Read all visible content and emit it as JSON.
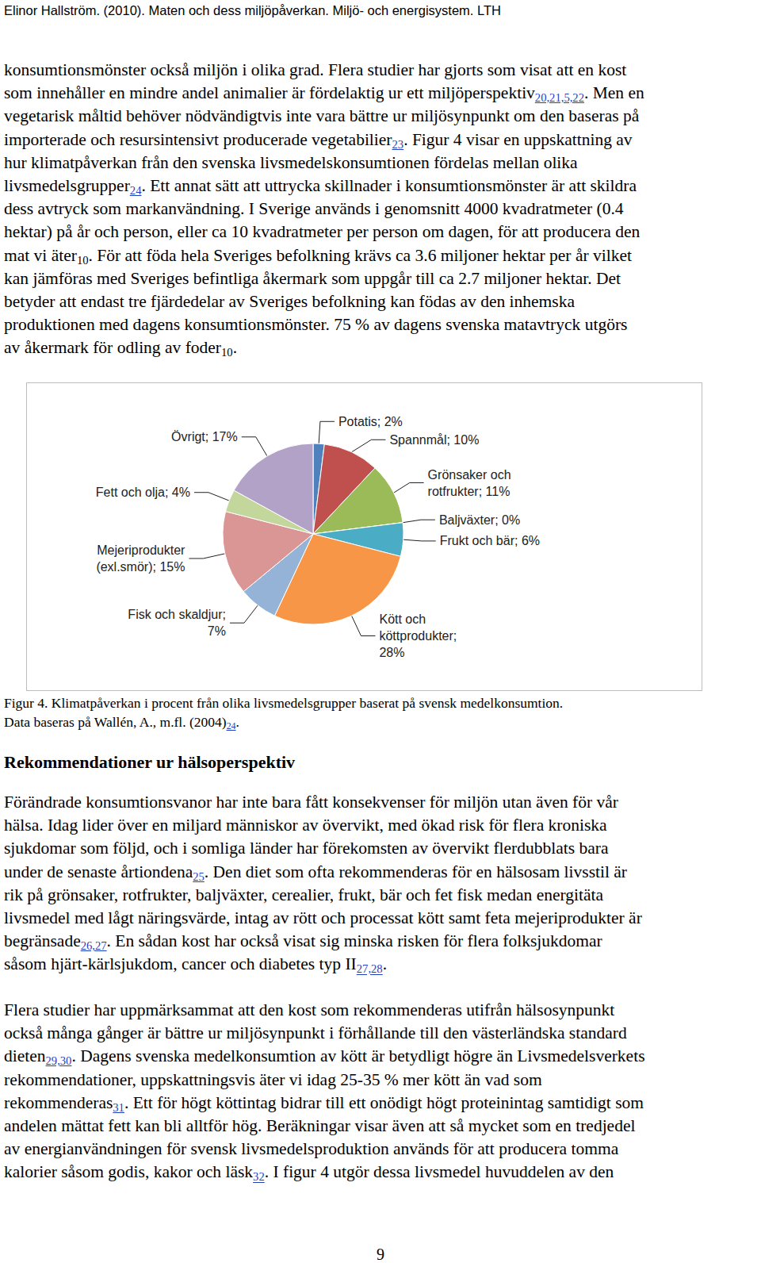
{
  "header": "Elinor Hallström. (2010). Maten och dess miljöpåverkan. Miljö- och energisystem. LTH",
  "intro_paragraph": [
    [
      "konsumtionsmönster också miljön i olika grad. Flera studier har gjorts som visat att en kost"
    ],
    [
      "som innehåller en mindre andel animalier är fördelaktig ur ett miljöperspektiv",
      {
        "sub": "20,21,5,22",
        "link": true
      },
      ". Men en"
    ],
    [
      "vegetarisk måltid behöver nödvändigtvis inte vara bättre ur miljösynpunkt om den baseras på"
    ],
    [
      "importerade och resursintensivt producerade vegetabilier",
      {
        "sub": "23",
        "link": true
      },
      ". Figur 4 visar en uppskattning av"
    ],
    [
      "hur klimatpåverkan från den svenska livsmedelskonsumtionen fördelas mellan olika"
    ],
    [
      "livsmedelsgrupper",
      {
        "sub": "24",
        "link": true
      },
      ". Ett annat sätt att uttrycka skillnader i konsumtionsmönster är att skildra"
    ],
    [
      "dess avtryck som markanvändning. I Sverige används i genomsnitt 4000 kvadratmeter (0.4"
    ],
    [
      "hektar) på år och person, eller ca 10 kvadratmeter per person om dagen, för att producera den"
    ],
    [
      "mat vi äter",
      {
        "sub": "10",
        "link": false
      },
      ". För att föda hela Sveriges befolkning krävs ca 3.6 miljoner hektar per år vilket"
    ],
    [
      "kan jämföras med Sveriges befintliga åkermark som uppgår till ca 2.7 miljoner hektar. Det"
    ],
    [
      "betyder att endast tre fjärdedelar av Sveriges befolkning kan födas av den inhemska"
    ],
    [
      "produktionen med dagens konsumtionsmönster. 75 % av dagens svenska matavtryck utgörs"
    ],
    [
      "av åkermark för odling av foder",
      {
        "sub": "10",
        "link": false
      },
      "."
    ]
  ],
  "chart_data": {
    "type": "pie",
    "categories": [
      "Potatis",
      "Spannmål",
      "Grönsaker och rotfrukter",
      "Baljväxter",
      "Frukt och bär",
      "Kött och köttprodukter",
      "Fisk och skaldjur",
      "Mejeriprodukter (exl.smör)",
      "Fett och olja",
      "Övrigt"
    ],
    "values": [
      2,
      10,
      11,
      0,
      6,
      28,
      7,
      15,
      4,
      17
    ],
    "value_labels": [
      "Potatis; 2%",
      "Spannmål; 10%",
      "Grönsaker och\nrotfrukter; 11%",
      "Baljväxter; 0%",
      "Frukt och bär; 6%",
      "Kött och\nköttprodukter;\n28%",
      "Fisk och skaldjur;\n7%",
      "Mejeriprodukter\n(exl.smör); 15%",
      "Fett och olja; 4%",
      "Övrigt; 17%"
    ],
    "colors": [
      "#4f81bd",
      "#c0504d",
      "#9bbb59",
      "#8064a2",
      "#4bacc6",
      "#f79646",
      "#95b3d7",
      "#d99694",
      "#c3d69b",
      "#b3a2c7"
    ],
    "data_labels": true
  },
  "caption": [
    [
      "Figur 4. Klimatpåverkan i procent från olika livsmedelsgrupper baserat på svensk medelkonsumtion."
    ],
    [
      "Data baseras på Wallén, A., m.fl. (2004)",
      {
        "sub": "24",
        "link": true
      },
      "."
    ]
  ],
  "heading": "Rekommendationer ur hälsoperspektiv",
  "paragraphs": [
    [
      [
        "Förändrade konsumtionsvanor har inte bara fått konsekvenser för miljön utan även för vår"
      ],
      [
        "hälsa. Idag lider över en miljard människor av övervikt, med ökad risk för flera kroniska"
      ],
      [
        "sjukdomar som följd, och i somliga länder har förekomsten av övervikt flerdubblats bara"
      ],
      [
        "under de senaste årtiondena",
        {
          "sub": "25",
          "link": true
        },
        ". Den diet som ofta rekommenderas för en hälsosam livsstil är"
      ],
      [
        "rik på grönsaker, rotfrukter, baljväxter, cerealier, frukt, bär och fet fisk medan energitäta"
      ],
      [
        "livsmedel med lågt näringsvärde, intag av rött och processat kött samt feta mejeriprodukter är"
      ],
      [
        "begränsade",
        {
          "sub": "26,27",
          "link": true
        },
        ". En sådan kost har också visat sig minska risken för flera folksjukdomar"
      ],
      [
        "såsom hjärt-kärlsjukdom, cancer och diabetes typ II",
        {
          "sub": "27,28",
          "link": true
        },
        "."
      ]
    ],
    [
      [
        "Flera studier har uppmärksammat att den kost som rekommenderas utifrån hälsosynpunkt"
      ],
      [
        "också många gånger är bättre ur miljösynpunkt i förhållande till den västerländska standard"
      ],
      [
        "dieten",
        {
          "sub": "29,30",
          "link": true
        },
        ". Dagens svenska medelkonsumtion av kött är betydligt högre än Livsmedelsverkets"
      ],
      [
        "rekommendationer, uppskattningsvis äter vi idag 25-35 % mer kött än vad som"
      ],
      [
        "rekommenderas",
        {
          "sub": "31",
          "link": true
        },
        ". Ett för högt köttintag bidrar till ett onödigt högt proteinintag samtidigt som"
      ],
      [
        "andelen mättat fett kan bli alltför hög. Beräkningar visar även att så mycket som en tredjedel"
      ],
      [
        "av energianvändningen för svensk livsmedelsproduktion används för att producera tomma"
      ],
      [
        "kalorier såsom godis, kakor och läsk",
        {
          "sub": "32",
          "link": true
        },
        ". I figur 4 utgör dessa livsmedel huvuddelen av den"
      ]
    ]
  ],
  "page_number": "9"
}
